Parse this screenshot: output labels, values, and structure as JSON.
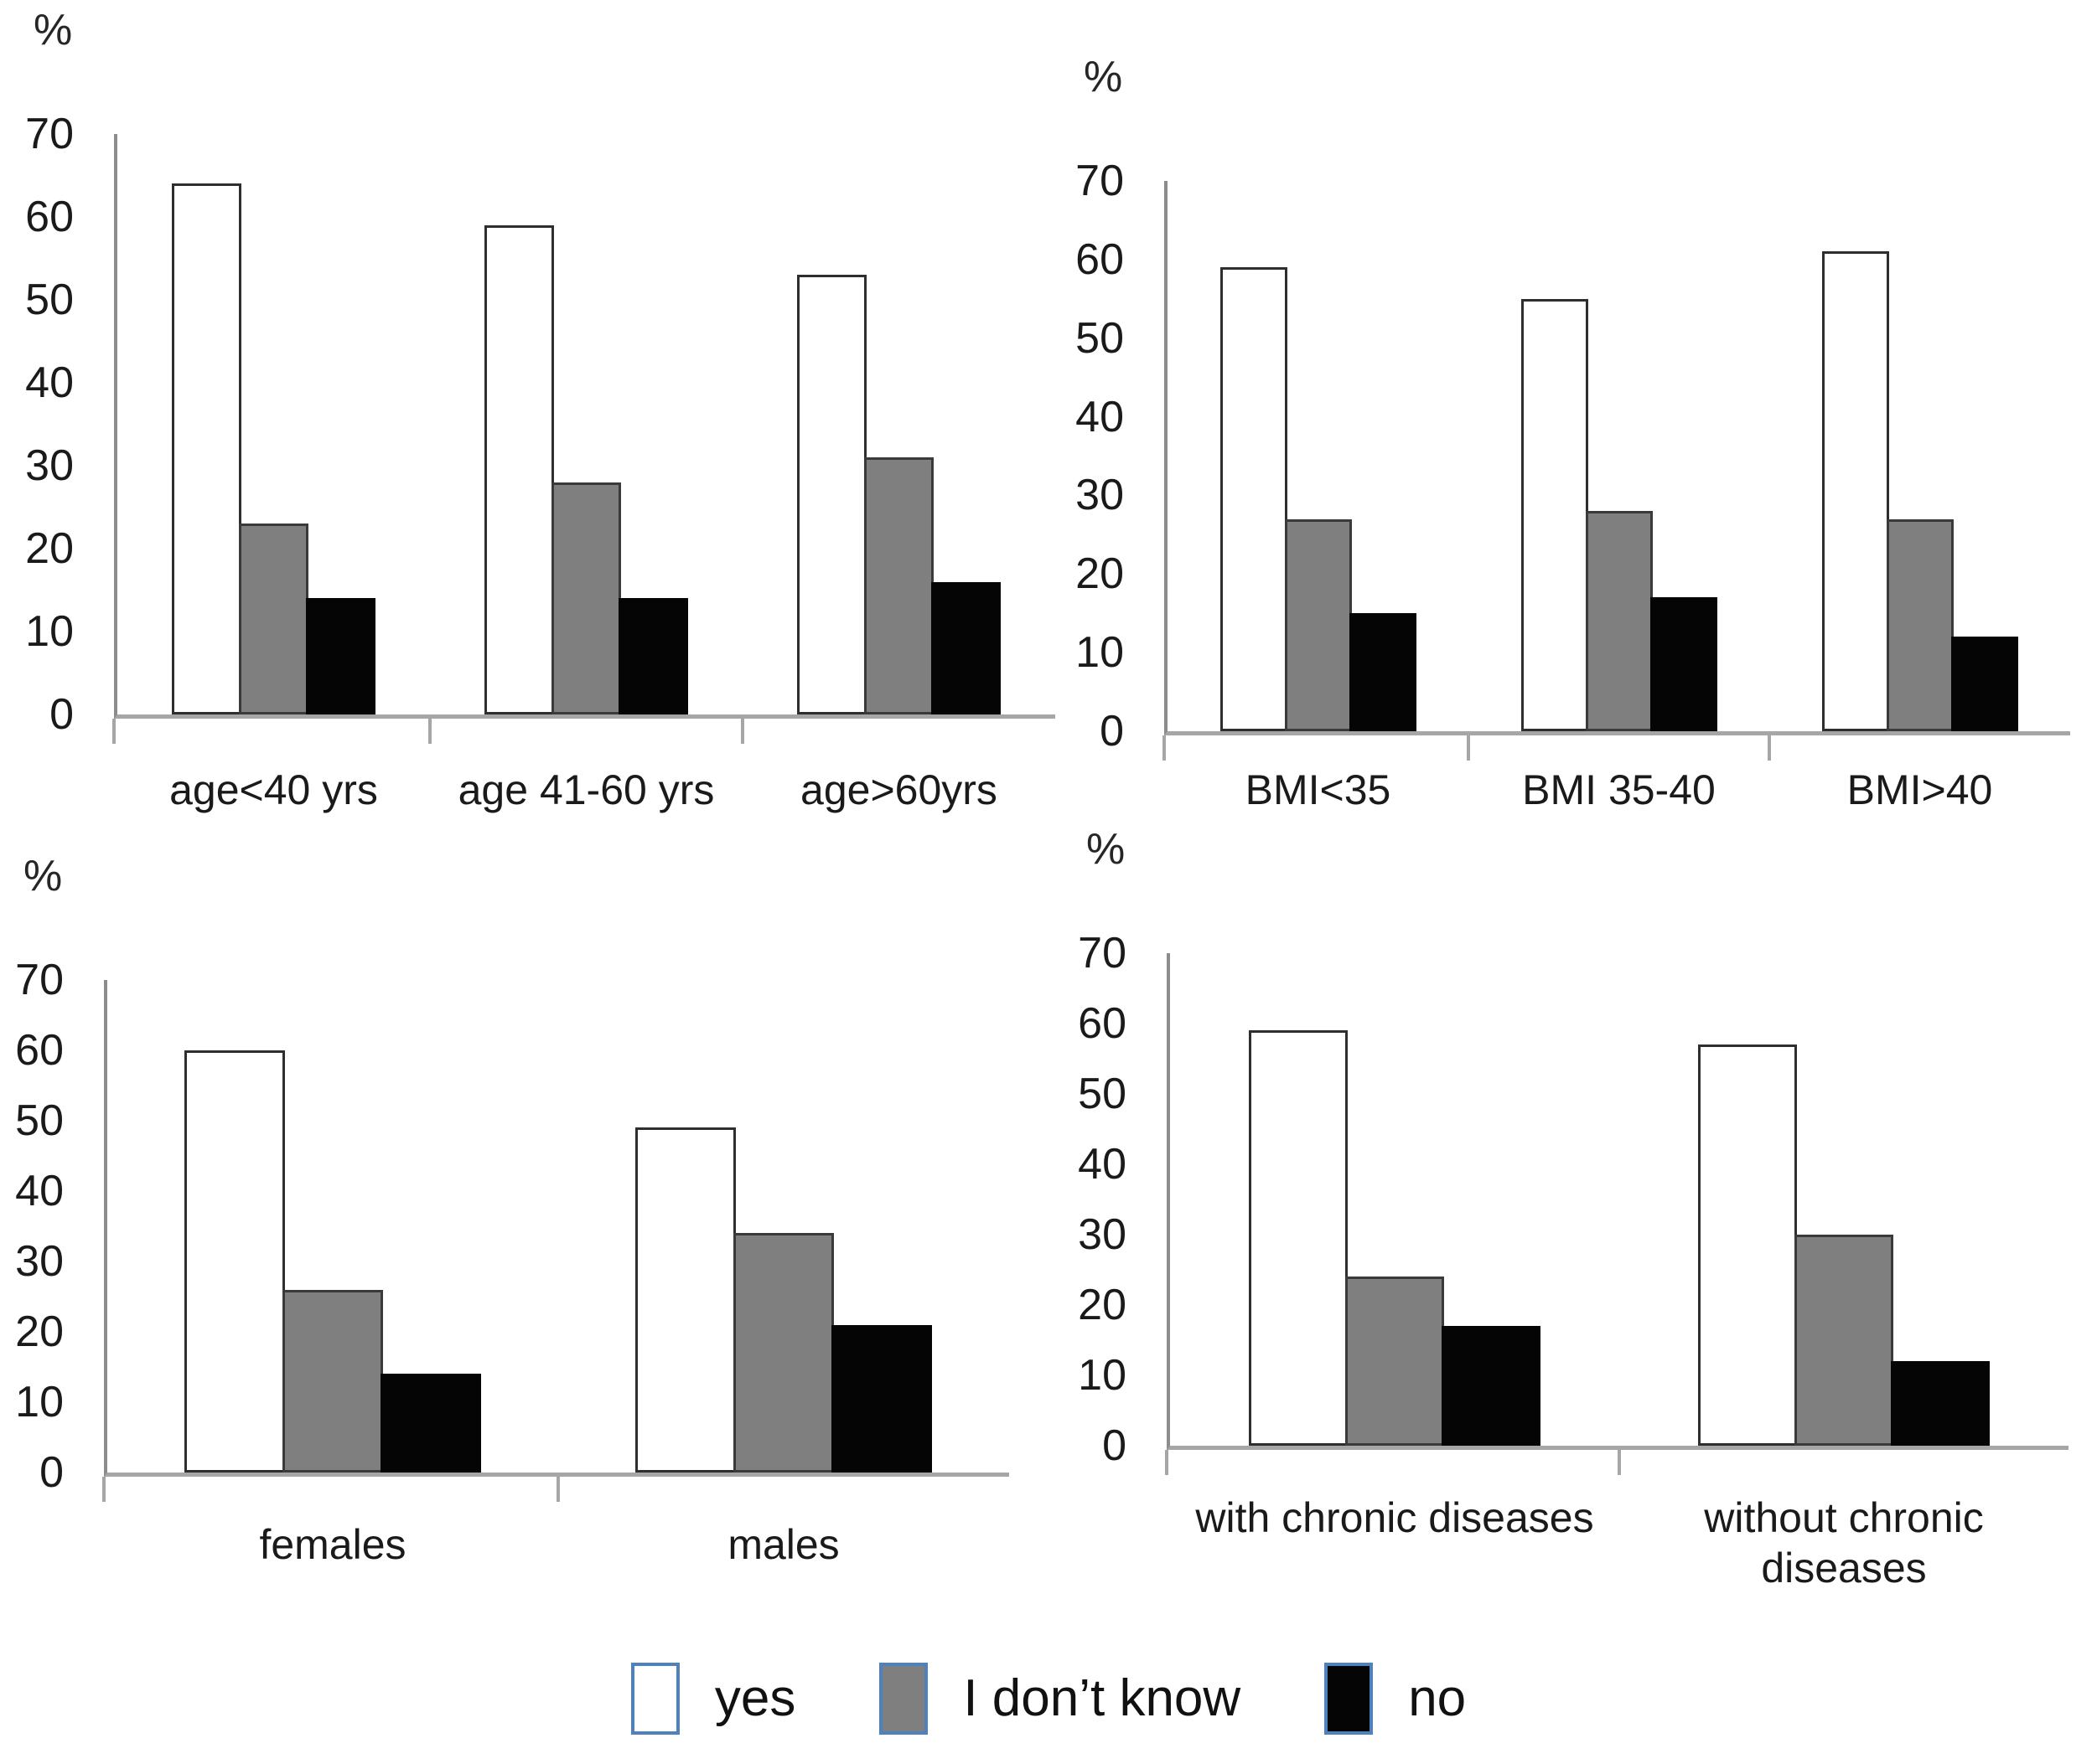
{
  "figure_title": "",
  "axis_unit_label": "%",
  "colors": {
    "yes_fill": "#ffffff",
    "dont_know_fill": "#7f7f7f",
    "no_fill": "#050505",
    "bar_border": "#2e2e2e",
    "axis_line": "#8c8c8c",
    "baseline": "#a6a6a6",
    "legend_swatch_border": "#4f81bd",
    "text": "#1a1a1a"
  },
  "legend": {
    "position": "bottom-center",
    "items": [
      {
        "label": "yes",
        "fill": "#ffffff"
      },
      {
        "label": "I don’t know",
        "fill": "#7f7f7f"
      },
      {
        "label": "no",
        "fill": "#050505"
      }
    ],
    "swatch_border": "#4f81bd"
  },
  "chart_data": [
    {
      "id": "age",
      "type": "bar",
      "title": "",
      "xlabel": "",
      "ylabel": "%",
      "ylim": [
        0,
        70
      ],
      "ytick_step": 10,
      "grid": false,
      "categories": [
        "age<40 yrs",
        "age 41-60 yrs",
        "age>60yrs"
      ],
      "series": [
        {
          "name": "yes",
          "fill": "#ffffff",
          "border": "#2e2e2e",
          "values": [
            64,
            59,
            53
          ]
        },
        {
          "name": "I don’t know",
          "fill": "#7f7f7f",
          "border": "#3a3a3a",
          "values": [
            23,
            28,
            31
          ]
        },
        {
          "name": "no",
          "fill": "#050505",
          "border": "#050505",
          "values": [
            14,
            14,
            16
          ]
        }
      ]
    },
    {
      "id": "bmi",
      "type": "bar",
      "title": "",
      "xlabel": "",
      "ylabel": "%",
      "ylim": [
        0,
        70
      ],
      "ytick_step": 10,
      "grid": false,
      "categories": [
        "BMI<35",
        "BMI 35-40",
        "BMI>40"
      ],
      "series": [
        {
          "name": "yes",
          "fill": "#ffffff",
          "border": "#2e2e2e",
          "values": [
            59,
            55,
            61
          ]
        },
        {
          "name": "I don’t know",
          "fill": "#7f7f7f",
          "border": "#3a3a3a",
          "values": [
            27,
            28,
            27
          ]
        },
        {
          "name": "no",
          "fill": "#050505",
          "border": "#050505",
          "values": [
            15,
            17,
            12
          ]
        }
      ]
    },
    {
      "id": "gender",
      "type": "bar",
      "title": "",
      "xlabel": "",
      "ylabel": "%",
      "ylim": [
        0,
        70
      ],
      "ytick_step": 10,
      "grid": false,
      "categories": [
        "females",
        "males"
      ],
      "series": [
        {
          "name": "yes",
          "fill": "#ffffff",
          "border": "#2e2e2e",
          "values": [
            60,
            49
          ]
        },
        {
          "name": "I don’t know",
          "fill": "#7f7f7f",
          "border": "#3a3a3a",
          "values": [
            26,
            34
          ]
        },
        {
          "name": "no",
          "fill": "#050505",
          "border": "#050505",
          "values": [
            14,
            21
          ]
        }
      ]
    },
    {
      "id": "chronic",
      "type": "bar",
      "title": "",
      "xlabel": "",
      "ylabel": "%",
      "ylim": [
        0,
        70
      ],
      "ytick_step": 10,
      "grid": false,
      "categories": [
        "with chronic diseases",
        "without chronic\ndiseases"
      ],
      "series": [
        {
          "name": "yes",
          "fill": "#ffffff",
          "border": "#2e2e2e",
          "values": [
            59,
            57
          ]
        },
        {
          "name": "I don’t know",
          "fill": "#7f7f7f",
          "border": "#3a3a3a",
          "values": [
            24,
            30
          ]
        },
        {
          "name": "no",
          "fill": "#050505",
          "border": "#050505",
          "values": [
            17,
            12
          ]
        }
      ]
    }
  ]
}
